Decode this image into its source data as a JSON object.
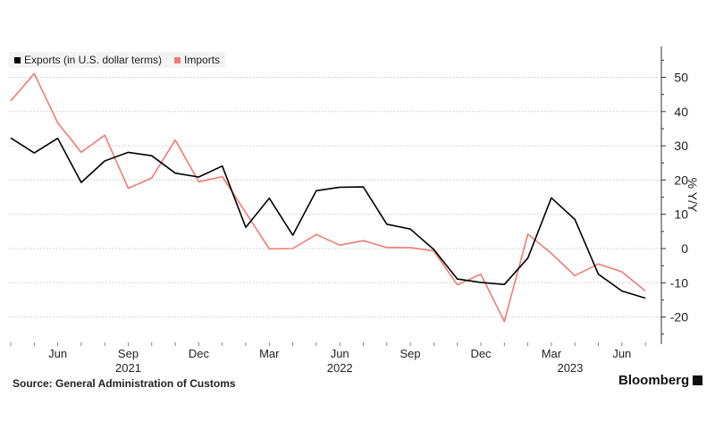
{
  "chart_data": {
    "type": "line",
    "ylabel": "% Y/Y",
    "ylim": [
      -25,
      60
    ],
    "yticks": [
      50,
      40,
      30,
      20,
      10,
      0,
      -10,
      -20
    ],
    "xlabels": [
      {
        "label": "Jun",
        "index": 2
      },
      {
        "label": "Sep",
        "index": 5
      },
      {
        "label": "Dec",
        "index": 8
      },
      {
        "label": "Mar",
        "index": 11
      },
      {
        "label": "Jun",
        "index": 14
      },
      {
        "label": "Sep",
        "index": 17
      },
      {
        "label": "Dec",
        "index": 20
      },
      {
        "label": "Mar",
        "index": 23
      },
      {
        "label": "Jun",
        "index": 26
      }
    ],
    "years": [
      {
        "label": "2021",
        "index": 5
      },
      {
        "label": "2022",
        "index": 14
      },
      {
        "label": "2023",
        "index": 23.8
      }
    ],
    "x": [
      "2021-04",
      "2021-05",
      "2021-06",
      "2021-07",
      "2021-08",
      "2021-09",
      "2021-10",
      "2021-11",
      "2021-12",
      "2022-01",
      "2022-02",
      "2022-03",
      "2022-04",
      "2022-05",
      "2022-06",
      "2022-07",
      "2022-08",
      "2022-09",
      "2022-10",
      "2022-11",
      "2022-12",
      "2023-01",
      "2023-02",
      "2023-03",
      "2023-04",
      "2023-05",
      "2023-06",
      "2023-07"
    ],
    "series": [
      {
        "name": "Exports (in U.S. dollar terms)",
        "color": "#000000",
        "values": [
          32.3,
          27.9,
          32.2,
          19.3,
          25.6,
          28.1,
          27.1,
          22.0,
          20.9,
          24.1,
          6.2,
          14.7,
          3.9,
          16.9,
          17.9,
          18.0,
          7.1,
          5.7,
          -0.3,
          -8.9,
          -9.9,
          -10.5,
          -2.8,
          14.8,
          8.5,
          -7.5,
          -12.4,
          -14.5
        ]
      },
      {
        "name": "Imports",
        "color": "#f07b72",
        "values": [
          43.1,
          51.1,
          36.7,
          28.1,
          33.1,
          17.6,
          20.6,
          31.7,
          19.5,
          21.0,
          10.5,
          -0.1,
          -0.0,
          4.1,
          1.0,
          2.3,
          0.3,
          0.3,
          -0.7,
          -10.6,
          -7.5,
          -21.3,
          4.2,
          -1.4,
          -7.9,
          -4.5,
          -6.8,
          -12.4
        ]
      }
    ],
    "legend": "top-left",
    "grid": true
  },
  "source": "Source: General Administration of Customs",
  "brand": "Bloomberg",
  "brand_icon": "bloomberg-logo-icon"
}
